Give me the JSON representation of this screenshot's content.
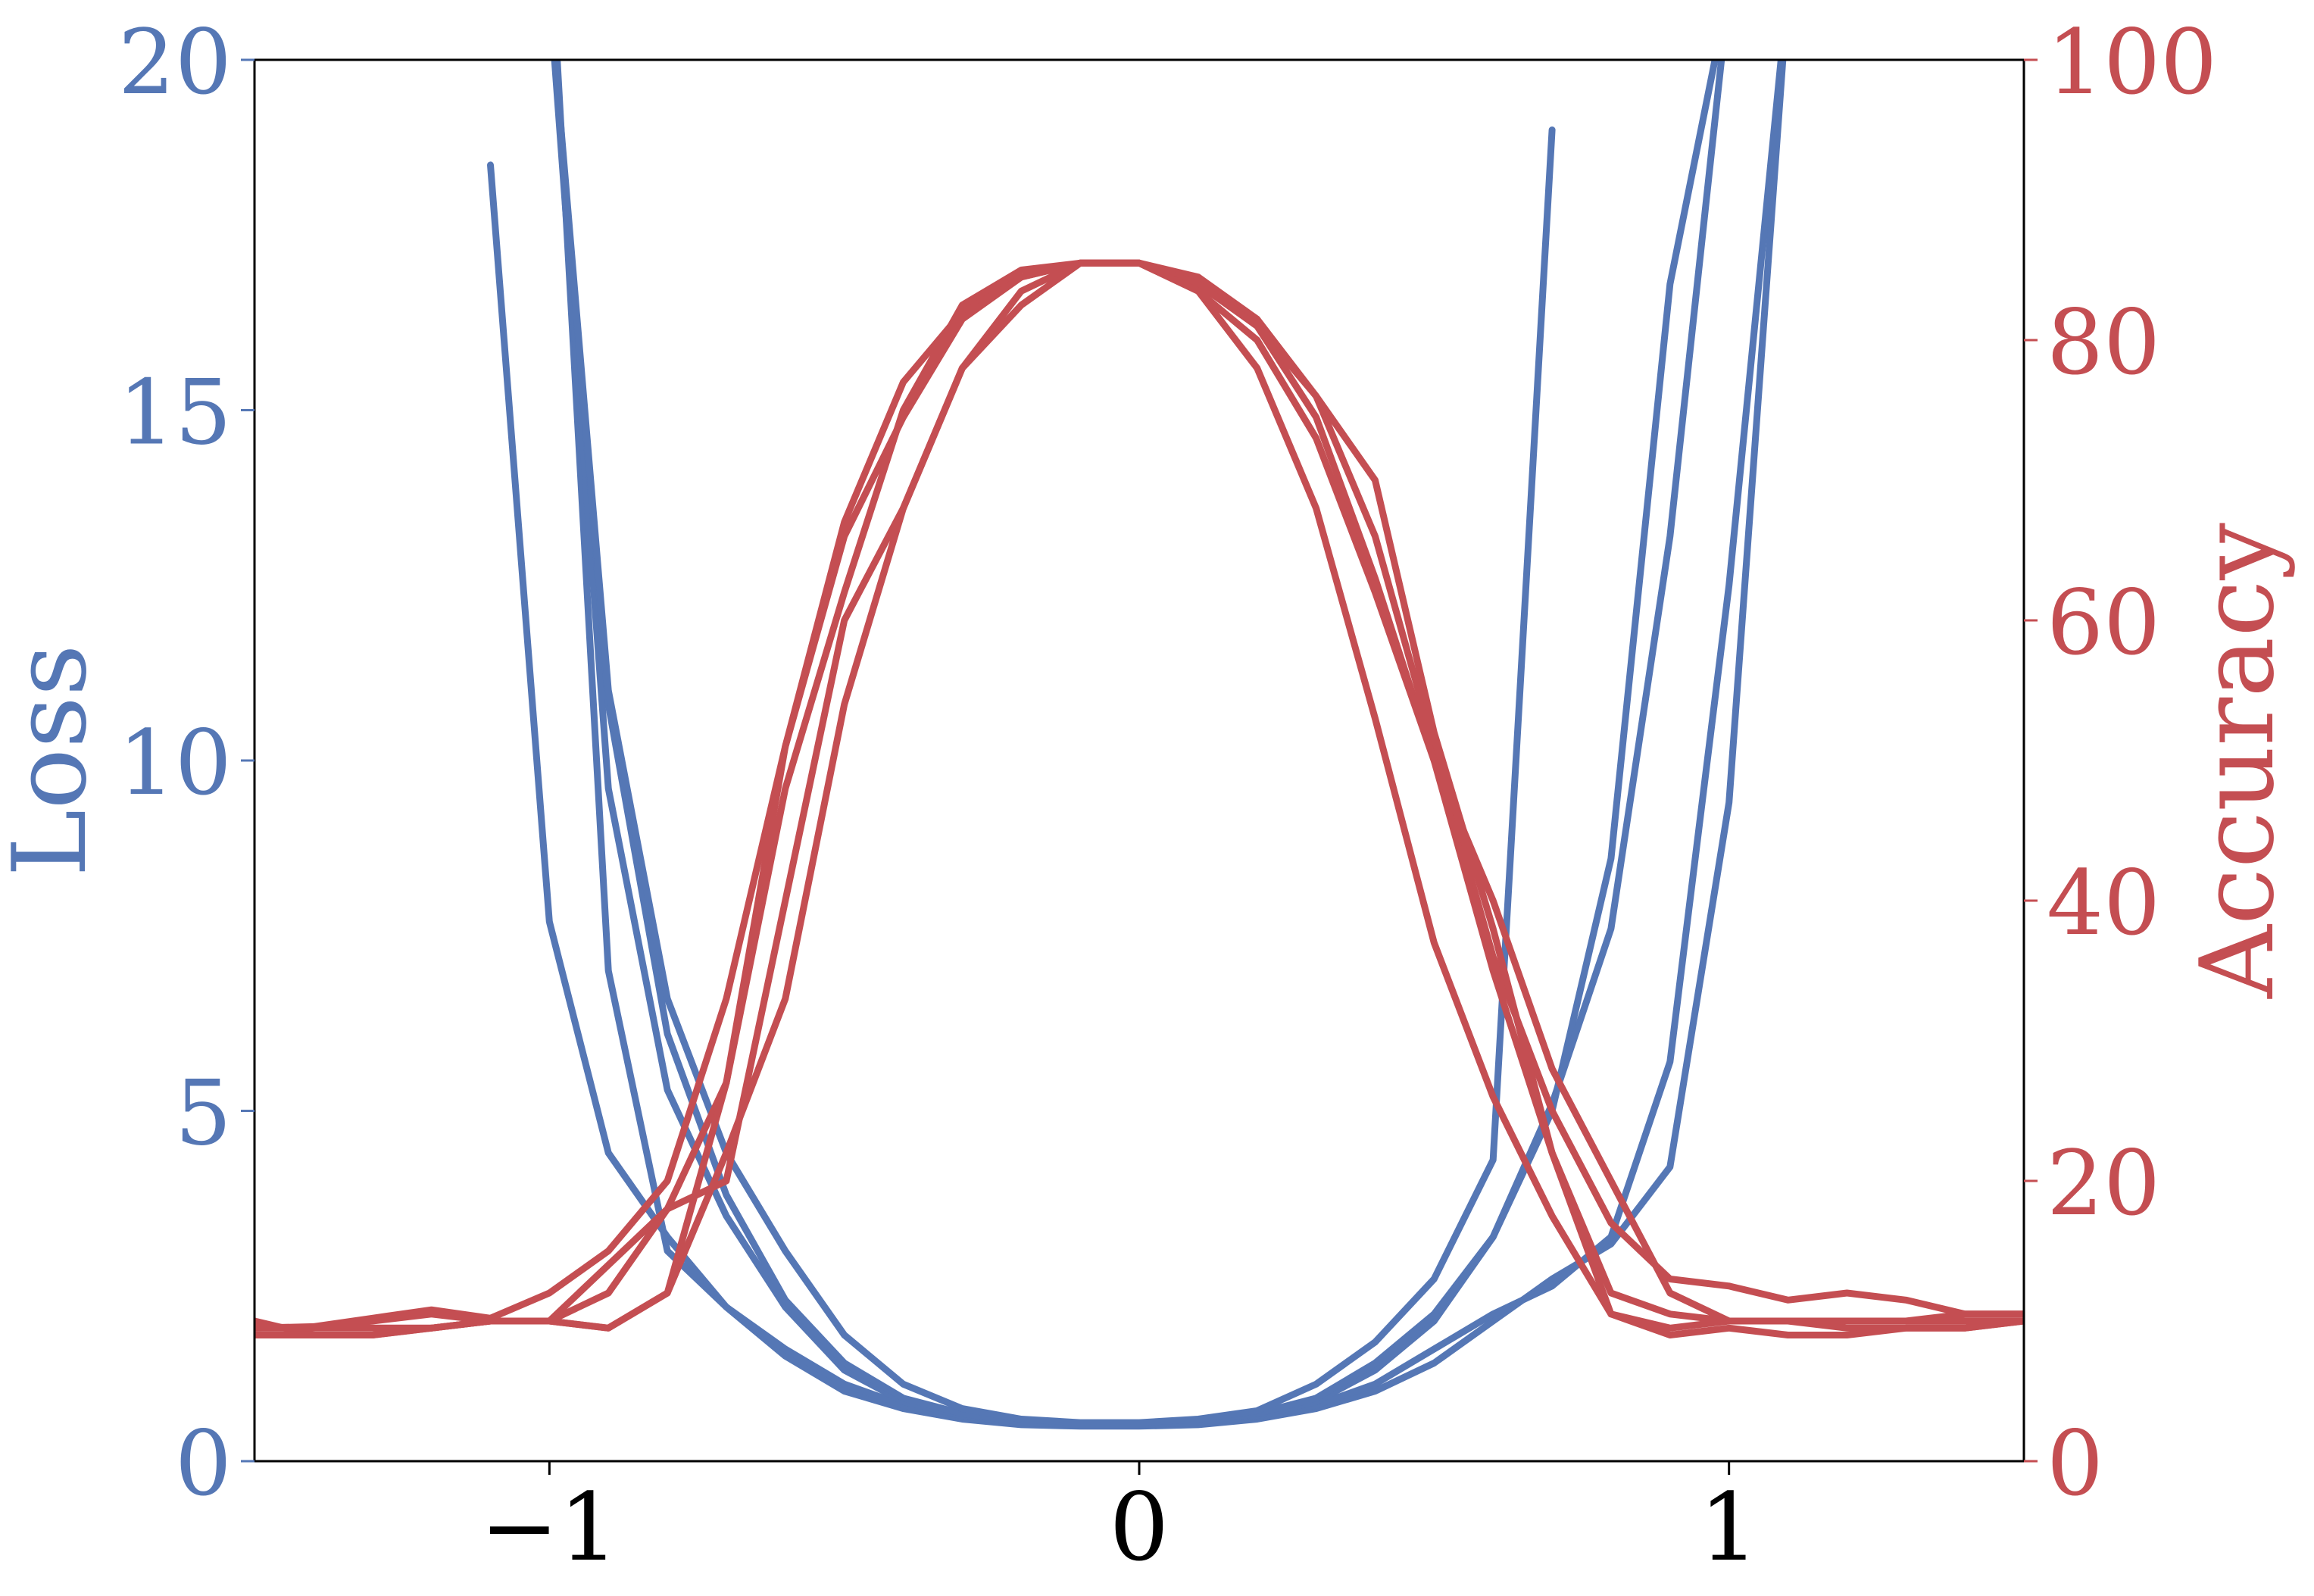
{
  "chart_data": {
    "type": "line",
    "title": "",
    "xlabel": "",
    "ylabel_left": "Loss",
    "ylabel_right": "Accuracy",
    "xlim": [
      -1.5,
      1.5
    ],
    "ylim_left": [
      0,
      20
    ],
    "ylim_right": [
      0,
      100
    ],
    "x_ticks": [
      -1,
      0,
      1
    ],
    "x_tick_labels": [
      "−1",
      "0",
      "1"
    ],
    "y_left_ticks": [
      0,
      5,
      10,
      15,
      20
    ],
    "y_left_tick_labels": [
      "0",
      "5",
      "10",
      "15",
      "20"
    ],
    "y_right_ticks": [
      0,
      20,
      40,
      60,
      80,
      100
    ],
    "y_right_tick_labels": [
      "0",
      "20",
      "40",
      "60",
      "80",
      "100"
    ],
    "grid": false,
    "colors": {
      "loss": "#5577b5",
      "accuracy": "#c44e52",
      "axis": "#000000"
    },
    "x": [
      -1.5,
      -1.4,
      -1.3,
      -1.2,
      -1.1,
      -1.0,
      -0.9,
      -0.8,
      -0.7,
      -0.6,
      -0.5,
      -0.4,
      -0.3,
      -0.2,
      -0.1,
      0.0,
      0.1,
      0.2,
      0.3,
      0.4,
      0.5,
      0.6,
      0.7,
      0.8,
      0.9,
      1.0,
      1.1,
      1.2,
      1.3,
      1.4,
      1.5
    ],
    "loss_series": [
      {
        "axis": "left",
        "values": [
          null,
          null,
          null,
          null,
          18.5,
          7.7,
          4.4,
          3.2,
          2.2,
          1.5,
          1.0,
          0.75,
          0.6,
          0.52,
          0.5,
          0.5,
          0.52,
          0.6,
          0.75,
          1.0,
          1.4,
          2.0,
          2.6,
          3.1,
          4.2,
          9.4,
          21.0,
          null,
          null,
          null,
          null
        ]
      },
      {
        "axis": "left",
        "values": [
          null,
          null,
          null,
          null,
          null,
          22.0,
          7.0,
          3.0,
          2.2,
          1.6,
          1.1,
          0.8,
          0.62,
          0.55,
          0.52,
          0.52,
          0.55,
          0.62,
          0.8,
          1.1,
          1.6,
          2.1,
          2.5,
          3.2,
          5.7,
          12.5,
          21.0,
          null,
          null,
          null,
          null
        ]
      },
      {
        "axis": "left",
        "values": [
          null,
          null,
          null,
          null,
          null,
          21.0,
          9.6,
          5.3,
          3.5,
          2.2,
          1.3,
          0.85,
          0.65,
          0.55,
          0.52,
          0.52,
          0.55,
          0.65,
          0.85,
          1.3,
          2.0,
          3.2,
          5.0,
          8.6,
          16.8,
          21.0,
          null,
          null,
          null,
          null,
          null
        ]
      },
      {
        "axis": "left",
        "values": [
          null,
          null,
          null,
          null,
          null,
          21.0,
          10.8,
          6.1,
          3.8,
          2.3,
          1.4,
          0.9,
          0.68,
          0.56,
          0.52,
          0.52,
          0.56,
          0.68,
          0.9,
          1.4,
          2.1,
          3.2,
          5.1,
          7.6,
          13.2,
          21.0,
          null,
          null,
          null,
          null,
          null
        ]
      },
      {
        "axis": "left",
        "values": [
          null,
          null,
          null,
          null,
          null,
          21.0,
          11.0,
          6.6,
          4.4,
          3.0,
          1.8,
          1.1,
          0.75,
          0.6,
          0.55,
          0.55,
          0.6,
          0.72,
          1.1,
          1.7,
          2.6,
          4.3,
          19.0,
          null,
          null,
          null,
          null,
          null,
          null,
          null,
          null
        ]
      }
    ],
    "accuracy_series": [
      {
        "axis": "right",
        "values": [
          9.5,
          9.6,
          10.2,
          10.8,
          10.2,
          12.0,
          15.0,
          20.0,
          33.0,
          51.0,
          67.0,
          77.0,
          82.0,
          84.5,
          85.5,
          85.5,
          84.5,
          81.5,
          76.0,
          66.0,
          51.0,
          36.0,
          25.0,
          17.0,
          13.0,
          12.5,
          11.5,
          12.0,
          11.5,
          10.5,
          10.5
        ]
      },
      {
        "axis": "right",
        "values": [
          9.5,
          9.5,
          10.0,
          10.5,
          10.0,
          10.0,
          12.0,
          18.0,
          27.0,
          51.0,
          66.0,
          74.5,
          81.5,
          84.5,
          85.5,
          85.5,
          84.0,
          81.0,
          74.5,
          63.0,
          50.0,
          35.0,
          22.0,
          12.0,
          10.5,
          10.0,
          10.0,
          10.0,
          10.0,
          10.5,
          10.5
        ]
      },
      {
        "axis": "right",
        "values": [
          10.0,
          9.0,
          9.0,
          9.5,
          10.0,
          10.0,
          9.5,
          12.0,
          27.0,
          48.0,
          62.0,
          75.0,
          82.5,
          85.0,
          85.5,
          85.5,
          84.0,
          81.0,
          76.0,
          70.0,
          52.0,
          38.0,
          22.0,
          10.5,
          9.5,
          10.0,
          10.0,
          9.5,
          9.5,
          9.5,
          10.0
        ]
      },
      {
        "axis": "right",
        "values": [
          9.5,
          9.5,
          9.5,
          9.5,
          10.0,
          10.0,
          9.5,
          12.0,
          22.0,
          33.0,
          54.0,
          68.0,
          78.0,
          82.5,
          85.5,
          85.5,
          83.5,
          78.0,
          68.0,
          53.0,
          37.0,
          26.0,
          17.5,
          10.5,
          9.0,
          9.5,
          9.0,
          9.0,
          9.5,
          9.5,
          10.0
        ]
      },
      {
        "axis": "right",
        "values": [
          9.0,
          9.0,
          9.0,
          9.5,
          10.0,
          10.0,
          14.0,
          18.0,
          20.0,
          40.0,
          60.0,
          68.0,
          78.0,
          83.5,
          85.5,
          85.5,
          83.5,
          80.0,
          73.0,
          62.0,
          50.0,
          40.0,
          28.0,
          20.0,
          12.0,
          10.0,
          10.0,
          10.0,
          10.0,
          10.0,
          10.0
        ]
      }
    ]
  }
}
